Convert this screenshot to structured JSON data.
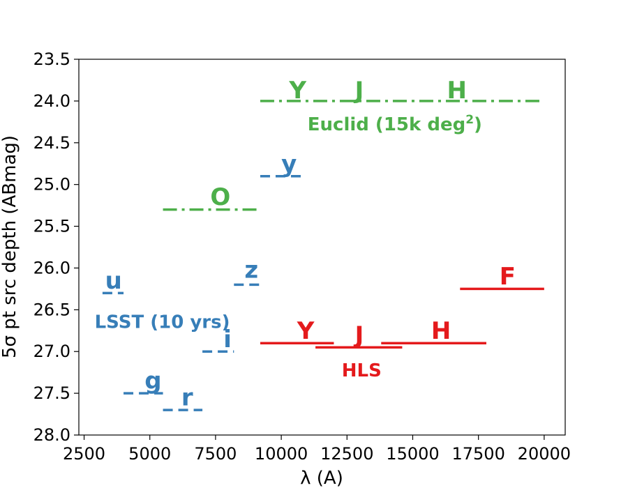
{
  "chart_data": {
    "type": "line",
    "title": "",
    "xlabel": "λ (A)",
    "ylabel": "5σ pt src depth (ABmag)",
    "xlim": [
      2300,
      20800
    ],
    "ylim": [
      28.0,
      23.5
    ],
    "y_inverted": true,
    "grid": false,
    "x_ticks": [
      2500,
      5000,
      7500,
      10000,
      12500,
      15000,
      17500,
      20000
    ],
    "x_tick_labels": [
      "2500",
      "5000",
      "7500",
      "10000",
      "12500",
      "15000",
      "17500",
      "20000"
    ],
    "y_ticks": [
      23.5,
      24.0,
      24.5,
      25.0,
      25.5,
      26.0,
      26.5,
      27.0,
      27.5,
      28.0
    ],
    "y_tick_labels": [
      "23.5",
      "24.0",
      "24.5",
      "25.0",
      "25.5",
      "26.0",
      "26.5",
      "27.0",
      "27.5",
      "28.0"
    ],
    "series": [
      {
        "name": "LSST (10 yrs)",
        "color": "#377eb8",
        "linestyle": "dashed",
        "bands": [
          {
            "label": "u",
            "x": [
              3200,
              4000
            ],
            "y": 26.3
          },
          {
            "label": "g",
            "x": [
              4000,
              5500
            ],
            "y": 27.5
          },
          {
            "label": "r",
            "x": [
              5500,
              7000
            ],
            "y": 27.7
          },
          {
            "label": "i",
            "x": [
              7000,
              8200
            ],
            "y": 27.0
          },
          {
            "label": "z",
            "x": [
              8200,
              9200
            ],
            "y": 26.2
          },
          {
            "label": "y",
            "x": [
              9200,
              10800
            ],
            "y": 24.9
          }
        ]
      },
      {
        "name": "Euclid (15k deg2)",
        "color": "#4daf4a",
        "linestyle": "dashdot",
        "bands": [
          {
            "label": "O",
            "x": [
              5500,
              9200
            ],
            "y": 25.3
          },
          {
            "label": "Y",
            "x": [
              9200,
              20000
            ],
            "y": 24.0
          },
          {
            "label": "J",
            "x": [
              9200,
              20000
            ],
            "y": 24.0
          },
          {
            "label": "H",
            "x": [
              9200,
              20000
            ],
            "y": 24.0
          }
        ]
      },
      {
        "name": "HLS",
        "color": "#e41a1c",
        "linestyle": "solid",
        "bands": [
          {
            "label": "Y",
            "x": [
              9200,
              12000
            ],
            "y": 26.9
          },
          {
            "label": "J",
            "x": [
              11300,
              14600
            ],
            "y": 26.95
          },
          {
            "label": "H",
            "x": [
              13800,
              17800
            ],
            "y": 26.9
          },
          {
            "label": "F",
            "x": [
              16800,
              20000
            ],
            "y": 26.25
          }
        ]
      }
    ],
    "annotations": [
      {
        "name": "band-label-u",
        "text": "u",
        "x": 3300,
        "y": 26.28,
        "color": "#377eb8",
        "kind": "band"
      },
      {
        "name": "band-label-g",
        "text": "g",
        "x": 4800,
        "y": 27.48,
        "color": "#377eb8",
        "kind": "band"
      },
      {
        "name": "band-label-r",
        "text": "r",
        "x": 6200,
        "y": 27.68,
        "color": "#377eb8",
        "kind": "band"
      },
      {
        "name": "band-label-i",
        "text": "i",
        "x": 7800,
        "y": 26.98,
        "color": "#377eb8",
        "kind": "band"
      },
      {
        "name": "band-label-z",
        "text": "z",
        "x": 8600,
        "y": 26.15,
        "color": "#377eb8",
        "kind": "band"
      },
      {
        "name": "band-label-y-lsst",
        "text": "y",
        "x": 10000,
        "y": 24.88,
        "color": "#377eb8",
        "kind": "band"
      },
      {
        "name": "band-label-o",
        "text": "O",
        "x": 7300,
        "y": 25.28,
        "color": "#4daf4a",
        "kind": "band"
      },
      {
        "name": "band-label-y-euclid",
        "text": "Y",
        "x": 10300,
        "y": 24.0,
        "color": "#4daf4a",
        "kind": "band"
      },
      {
        "name": "band-label-j-euclid",
        "text": "J",
        "x": 12800,
        "y": 24.0,
        "color": "#4daf4a",
        "kind": "band"
      },
      {
        "name": "band-label-h-euclid",
        "text": "H",
        "x": 16300,
        "y": 24.0,
        "color": "#4daf4a",
        "kind": "band"
      },
      {
        "name": "band-label-y-hls",
        "text": "Y",
        "x": 10600,
        "y": 26.88,
        "color": "#e41a1c",
        "kind": "band"
      },
      {
        "name": "band-label-j-hls",
        "text": "J",
        "x": 12800,
        "y": 26.93,
        "color": "#e41a1c",
        "kind": "band"
      },
      {
        "name": "band-label-h-hls",
        "text": "H",
        "x": 15700,
        "y": 26.88,
        "color": "#e41a1c",
        "kind": "band"
      },
      {
        "name": "band-label-f-hls",
        "text": "F",
        "x": 18300,
        "y": 26.23,
        "color": "#e41a1c",
        "kind": "band"
      },
      {
        "name": "survey-label-lsst",
        "text": "LSST (10 yrs)",
        "x": 2900,
        "y": 26.72,
        "color": "#377eb8",
        "kind": "survey"
      },
      {
        "name": "survey-label-hls",
        "text": "HLS",
        "x": 12300,
        "y": 27.3,
        "color": "#e41a1c",
        "kind": "survey"
      }
    ],
    "euclid_label": {
      "text": "Euclid (15k deg",
      "sup": "2",
      "close": ")",
      "x": 11000,
      "y": 24.35,
      "color": "#4daf4a"
    }
  }
}
